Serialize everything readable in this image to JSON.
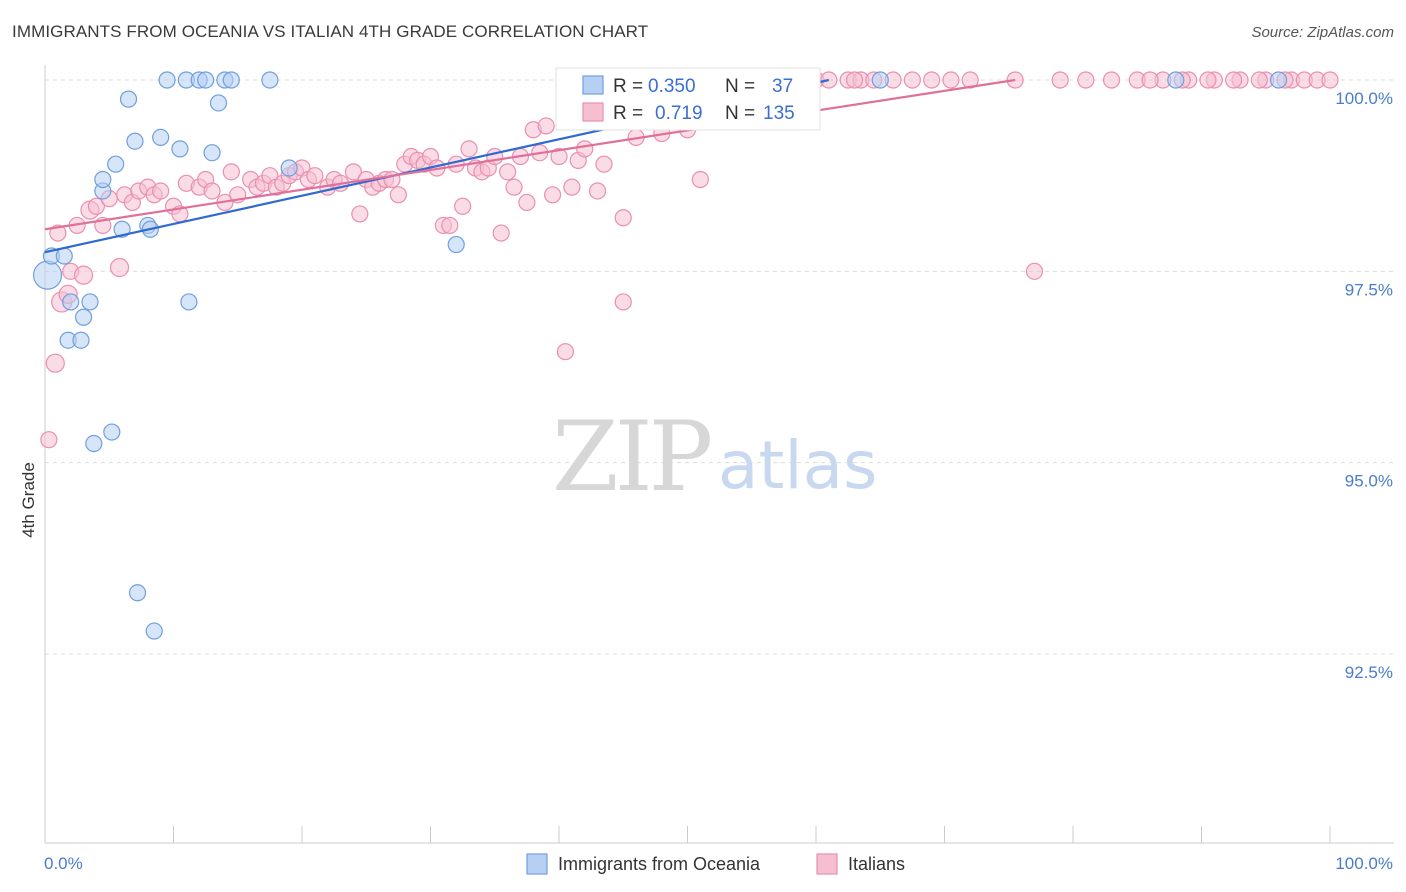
{
  "title": "IMMIGRANTS FROM OCEANIA VS ITALIAN 4TH GRADE CORRELATION CHART",
  "source": "Source: ZipAtlas.com",
  "watermark": {
    "zip": "ZIP",
    "atlas": "atlas"
  },
  "chart_data": {
    "type": "scatter",
    "title": "IMMIGRANTS FROM OCEANIA VS ITALIAN 4TH GRADE CORRELATION CHART",
    "xlabel": "",
    "ylabel": "4th Grade",
    "xlim": [
      0,
      100
    ],
    "ylim": [
      91.0,
      100.4
    ],
    "x_tick_labels": [
      "0.0%",
      "100.0%"
    ],
    "y_ticks": [
      {
        "value": 100.0,
        "label": "100.0%"
      },
      {
        "value": 97.5,
        "label": "97.5%"
      },
      {
        "value": 95.0,
        "label": "95.0%"
      },
      {
        "value": 92.5,
        "label": "92.5%"
      }
    ],
    "grid": true,
    "legend_position": "top-center",
    "series": [
      {
        "name": "Immigrants from Oceania",
        "color": "#6f9fe0",
        "fill": "#b7cff3",
        "line_color": "#2e6ad0",
        "R": "0.350",
        "N": "37",
        "trend": [
          [
            0,
            97.75
          ],
          [
            61,
            100.0
          ]
        ],
        "points": [
          [
            0.2,
            97.45,
            14
          ],
          [
            0.5,
            97.7,
            8
          ],
          [
            1.5,
            97.7,
            8
          ],
          [
            1.8,
            96.6,
            8
          ],
          [
            2.0,
            97.1,
            8
          ],
          [
            2.8,
            96.6,
            8
          ],
          [
            3.0,
            96.9,
            8
          ],
          [
            3.5,
            97.1,
            8
          ],
          [
            3.8,
            95.25,
            8
          ],
          [
            5.2,
            95.4,
            8
          ],
          [
            4.5,
            98.55,
            8
          ],
          [
            4.5,
            98.7,
            8
          ],
          [
            5.5,
            98.9,
            8
          ],
          [
            6.0,
            98.05,
            8
          ],
          [
            6.5,
            99.75,
            8
          ],
          [
            7.0,
            99.2,
            8
          ],
          [
            7.2,
            93.3,
            8
          ],
          [
            8.0,
            98.1,
            8
          ],
          [
            8.2,
            98.05,
            8
          ],
          [
            8.5,
            92.8,
            8
          ],
          [
            9.0,
            99.25,
            8
          ],
          [
            9.5,
            100.0,
            8
          ],
          [
            10.5,
            99.1,
            8
          ],
          [
            11.0,
            100.0,
            8
          ],
          [
            11.2,
            97.1,
            8
          ],
          [
            12.0,
            100.0,
            8
          ],
          [
            12.5,
            100.0,
            8
          ],
          [
            13.0,
            99.05,
            8
          ],
          [
            13.5,
            99.7,
            8
          ],
          [
            14.0,
            100.0,
            8
          ],
          [
            14.5,
            100.0,
            8
          ],
          [
            17.5,
            100.0,
            8
          ],
          [
            19.0,
            98.85,
            8
          ],
          [
            32.0,
            97.85,
            8
          ],
          [
            65.0,
            100.0,
            8
          ],
          [
            88.0,
            100.0,
            8
          ],
          [
            96.0,
            100.0,
            8
          ]
        ]
      },
      {
        "name": "Italians",
        "color": "#ea8fae",
        "fill": "#f6bfd1",
        "line_color": "#e0709a",
        "R": "0.719",
        "N": "135",
        "trend": [
          [
            0,
            98.05
          ],
          [
            75.5,
            100.0
          ]
        ],
        "points": [
          [
            0.3,
            95.3,
            8
          ],
          [
            0.8,
            96.3,
            9
          ],
          [
            1.0,
            98.0,
            8
          ],
          [
            1.3,
            97.1,
            10
          ],
          [
            1.8,
            97.2,
            9
          ],
          [
            2.0,
            97.5,
            8
          ],
          [
            2.5,
            98.1,
            8
          ],
          [
            3.0,
            97.45,
            9
          ],
          [
            3.5,
            98.3,
            9
          ],
          [
            4.0,
            98.35,
            8
          ],
          [
            4.5,
            98.1,
            8
          ],
          [
            5.0,
            98.45,
            8
          ],
          [
            5.8,
            97.55,
            9
          ],
          [
            6.2,
            98.5,
            8
          ],
          [
            6.8,
            98.4,
            8
          ],
          [
            7.3,
            98.55,
            8
          ],
          [
            8.0,
            98.6,
            8
          ],
          [
            8.5,
            98.5,
            8
          ],
          [
            9.0,
            98.55,
            8
          ],
          [
            10.0,
            98.35,
            8
          ],
          [
            10.5,
            98.25,
            8
          ],
          [
            11.0,
            98.65,
            8
          ],
          [
            12.0,
            98.6,
            8
          ],
          [
            12.5,
            98.7,
            8
          ],
          [
            13.0,
            98.55,
            8
          ],
          [
            14.0,
            98.4,
            8
          ],
          [
            14.5,
            98.8,
            8
          ],
          [
            15.0,
            98.5,
            8
          ],
          [
            16.0,
            98.7,
            8
          ],
          [
            16.5,
            98.6,
            8
          ],
          [
            17.0,
            98.65,
            8
          ],
          [
            17.5,
            98.75,
            8
          ],
          [
            18.0,
            98.6,
            8
          ],
          [
            18.5,
            98.65,
            8
          ],
          [
            19.0,
            98.75,
            8
          ],
          [
            19.5,
            98.8,
            8
          ],
          [
            20.0,
            98.85,
            8
          ],
          [
            20.5,
            98.7,
            8
          ],
          [
            21.0,
            98.75,
            8
          ],
          [
            22.0,
            98.6,
            8
          ],
          [
            22.5,
            98.7,
            8
          ],
          [
            23.0,
            98.65,
            8
          ],
          [
            24.0,
            98.8,
            8
          ],
          [
            24.5,
            98.25,
            8
          ],
          [
            25.0,
            98.7,
            8
          ],
          [
            25.5,
            98.6,
            8
          ],
          [
            26.0,
            98.65,
            8
          ],
          [
            26.5,
            98.7,
            8
          ],
          [
            27.0,
            98.7,
            8
          ],
          [
            27.5,
            98.5,
            8
          ],
          [
            28.0,
            98.9,
            8
          ],
          [
            28.5,
            99.0,
            8
          ],
          [
            29.0,
            98.95,
            8
          ],
          [
            29.5,
            98.9,
            8
          ],
          [
            30.0,
            99.0,
            8
          ],
          [
            30.5,
            98.85,
            8
          ],
          [
            31.0,
            98.1,
            8
          ],
          [
            31.5,
            98.1,
            8
          ],
          [
            32.0,
            98.9,
            8
          ],
          [
            32.5,
            98.35,
            8
          ],
          [
            33.0,
            99.1,
            8
          ],
          [
            33.5,
            98.85,
            8
          ],
          [
            34.0,
            98.8,
            8
          ],
          [
            34.5,
            98.85,
            8
          ],
          [
            35.0,
            99.0,
            8
          ],
          [
            35.5,
            98.0,
            8
          ],
          [
            36.0,
            98.8,
            8
          ],
          [
            36.5,
            98.6,
            8
          ],
          [
            37.0,
            99.0,
            8
          ],
          [
            37.5,
            98.4,
            8
          ],
          [
            38.0,
            99.35,
            8
          ],
          [
            38.5,
            99.05,
            8
          ],
          [
            39.0,
            99.4,
            8
          ],
          [
            39.5,
            98.5,
            8
          ],
          [
            40.0,
            99.0,
            8
          ],
          [
            40.5,
            96.45,
            8
          ],
          [
            41.0,
            98.6,
            8
          ],
          [
            41.5,
            98.95,
            8
          ],
          [
            42.0,
            99.1,
            8
          ],
          [
            42.5,
            99.5,
            8
          ],
          [
            43.0,
            98.55,
            8
          ],
          [
            43.5,
            98.9,
            8
          ],
          [
            44.0,
            99.6,
            8
          ],
          [
            45.0,
            98.2,
            8
          ],
          [
            45.0,
            97.1,
            8
          ],
          [
            46.0,
            99.25,
            8
          ],
          [
            47.0,
            99.55,
            8
          ],
          [
            48.0,
            99.3,
            8
          ],
          [
            49.0,
            99.5,
            8
          ],
          [
            50.0,
            99.35,
            8
          ],
          [
            51.0,
            98.7,
            8
          ],
          [
            52.0,
            99.6,
            8
          ],
          [
            53.0,
            99.65,
            8
          ],
          [
            54.0,
            100.0,
            8
          ],
          [
            55.0,
            99.75,
            8
          ],
          [
            56.0,
            100.0,
            8
          ],
          [
            57.0,
            99.85,
            8
          ],
          [
            58.0,
            100.0,
            8
          ],
          [
            59.0,
            99.95,
            8
          ],
          [
            60.0,
            100.0,
            8
          ],
          [
            61.0,
            100.0,
            8
          ],
          [
            62.5,
            100.0,
            8
          ],
          [
            63.5,
            100.0,
            8
          ],
          [
            64.5,
            100.0,
            8
          ],
          [
            66.0,
            100.0,
            8
          ],
          [
            67.5,
            100.0,
            8
          ],
          [
            69.0,
            100.0,
            8
          ],
          [
            70.5,
            100.0,
            8
          ],
          [
            72.0,
            100.0,
            8
          ],
          [
            75.5,
            100.0,
            8
          ],
          [
            77.0,
            97.5,
            8
          ],
          [
            79.0,
            100.0,
            8
          ],
          [
            81.0,
            100.0,
            8
          ],
          [
            83.0,
            100.0,
            8
          ],
          [
            85.0,
            100.0,
            8
          ],
          [
            87.0,
            100.0,
            8
          ],
          [
            89.0,
            100.0,
            8
          ],
          [
            91.0,
            100.0,
            8
          ],
          [
            93.0,
            100.0,
            8
          ],
          [
            95.0,
            100.0,
            8
          ],
          [
            97.0,
            100.0,
            8
          ],
          [
            98.0,
            100.0,
            8
          ],
          [
            99.0,
            100.0,
            8
          ],
          [
            100.0,
            100.0,
            8
          ],
          [
            86.0,
            100.0,
            8
          ],
          [
            88.5,
            100.0,
            8
          ],
          [
            90.5,
            100.0,
            8
          ],
          [
            92.5,
            100.0,
            8
          ],
          [
            94.5,
            100.0,
            8
          ],
          [
            96.5,
            100.0,
            8
          ],
          [
            53.5,
            100.0,
            8
          ],
          [
            55.5,
            100.0,
            8
          ],
          [
            57.5,
            100.0,
            8
          ],
          [
            59.5,
            100.0,
            8
          ],
          [
            63.0,
            100.0,
            8
          ]
        ]
      }
    ]
  },
  "legend": {
    "r_label": "R =",
    "n_label": "N ="
  }
}
